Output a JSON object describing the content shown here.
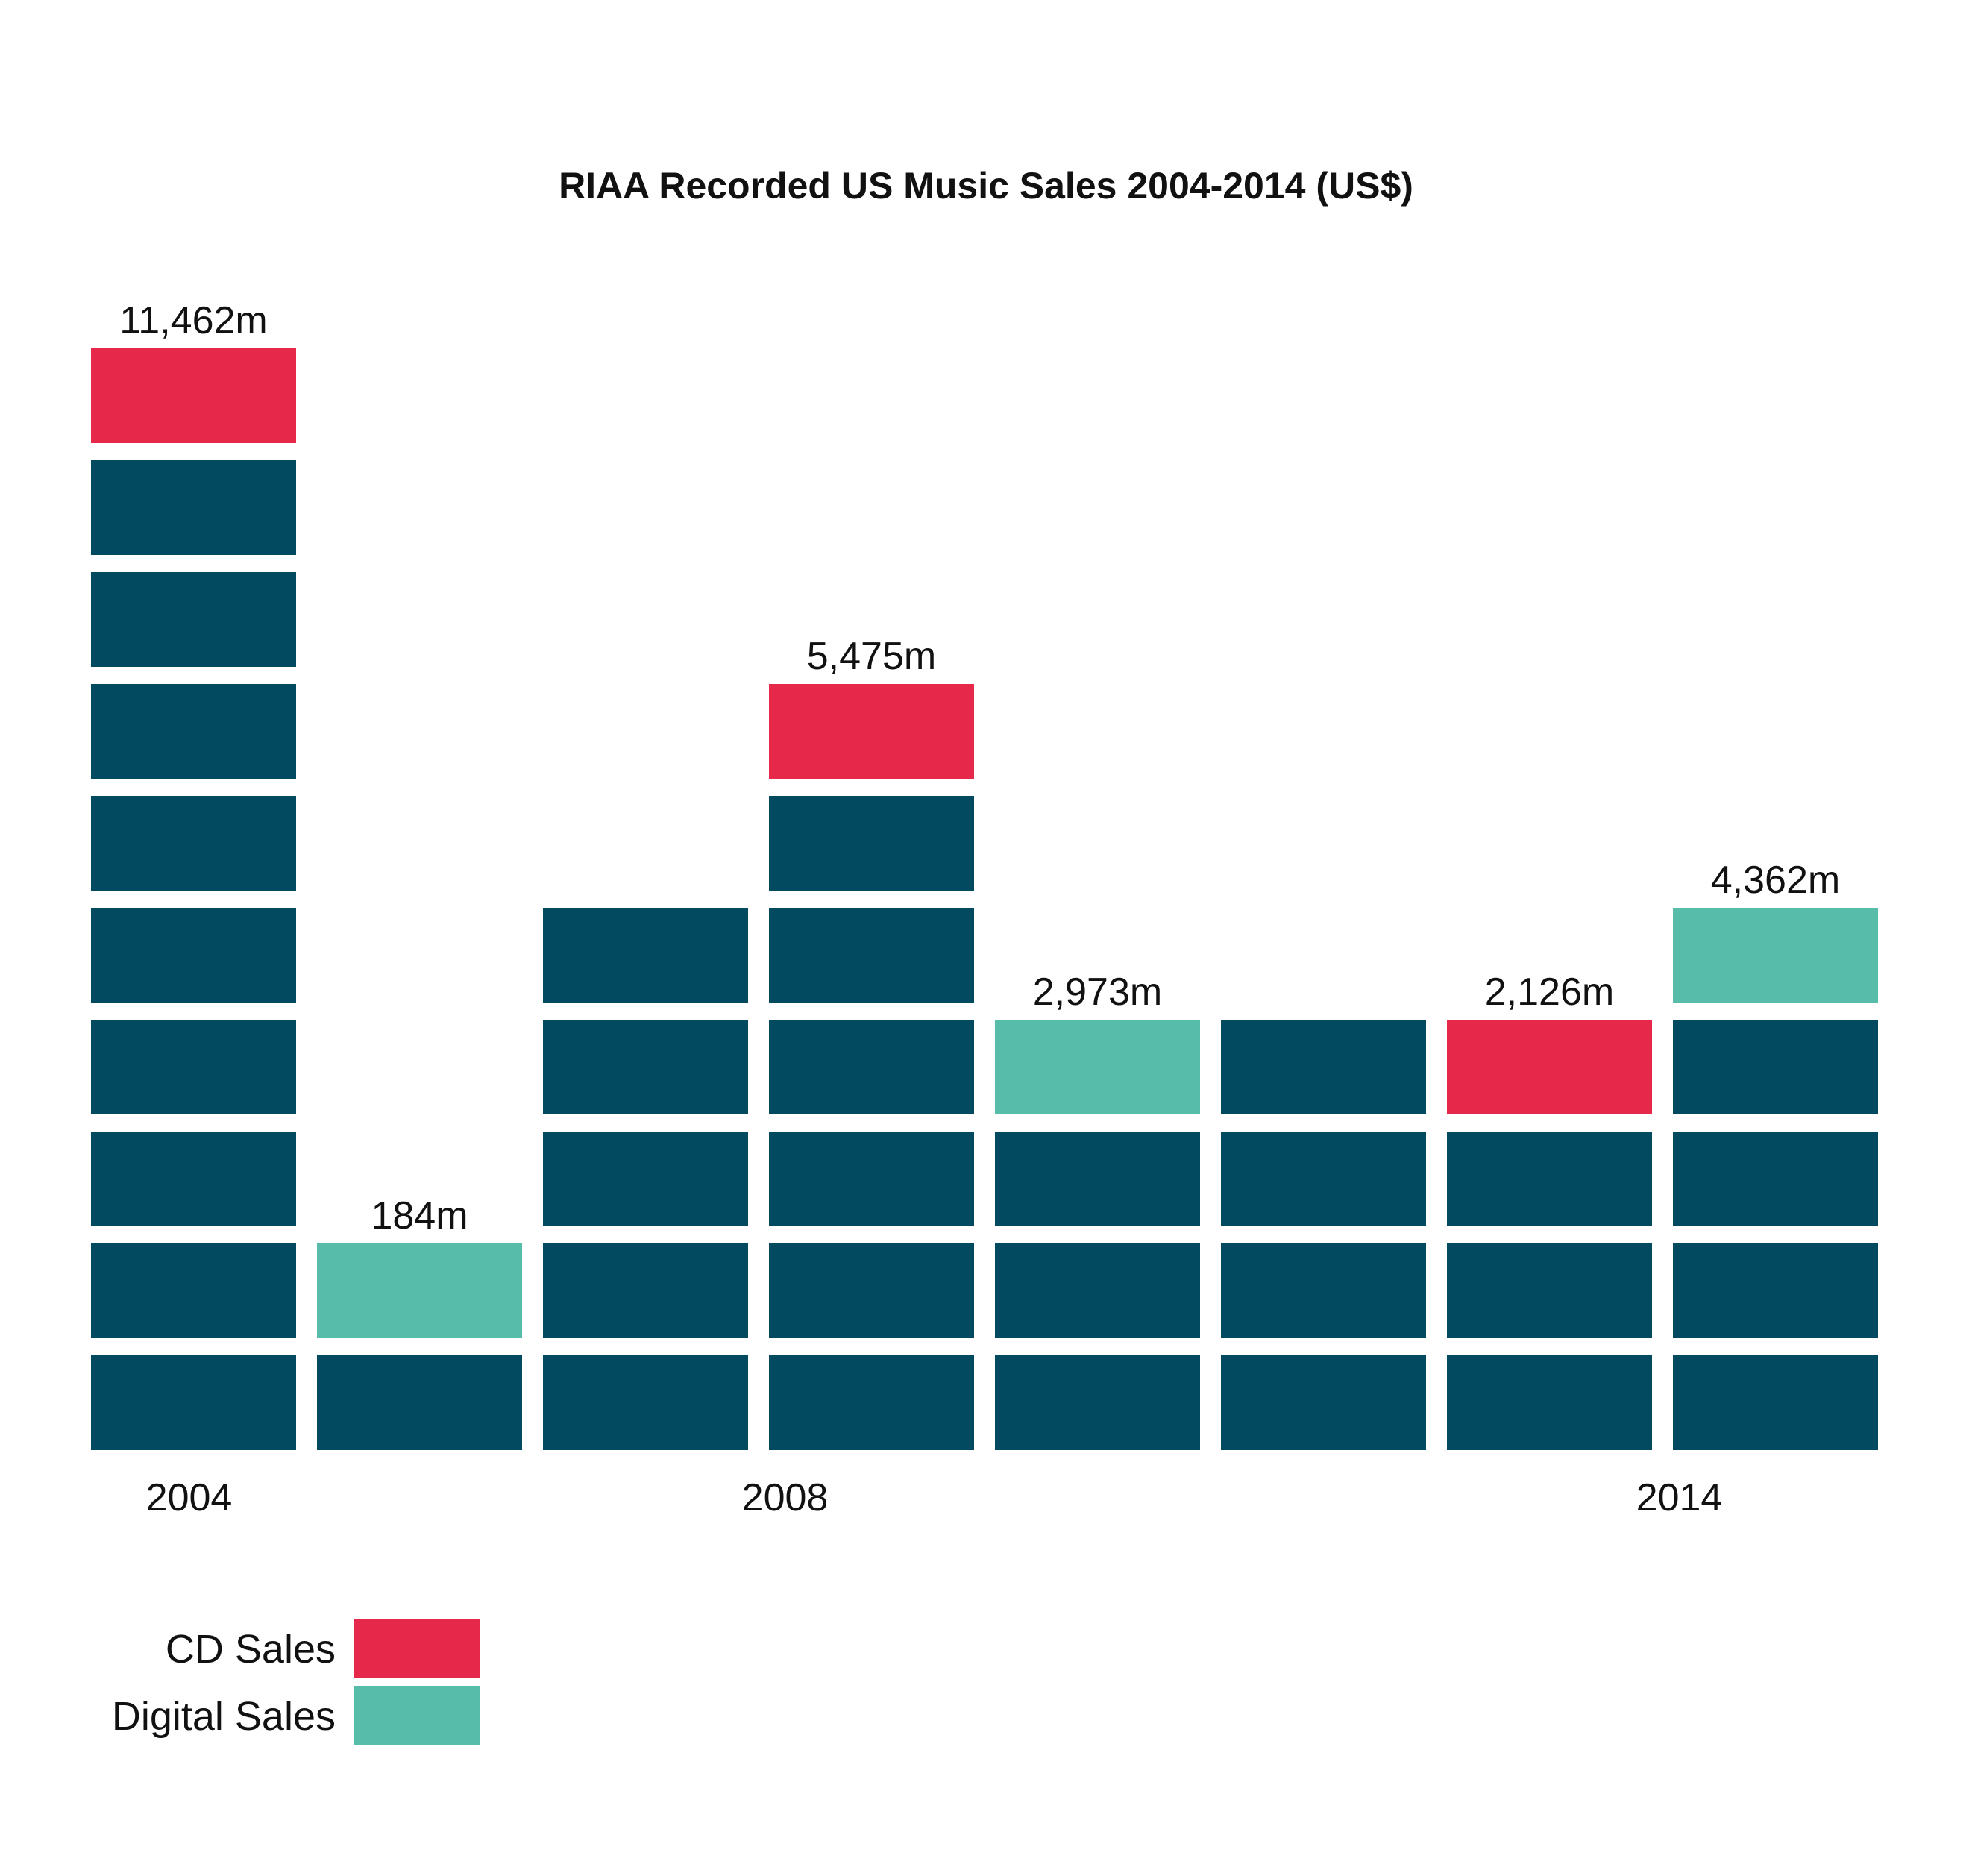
{
  "chart_data": {
    "type": "bar",
    "title": "RIAA Recorded US Music Sales 2004-2014 (US$)",
    "categories": [
      "2004",
      "",
      "",
      "2008",
      "",
      "",
      "",
      "2014"
    ],
    "values": [
      11462,
      184,
      4200,
      5475,
      2973,
      3100,
      2126,
      4362
    ],
    "block_counts": [
      10,
      2,
      5,
      7,
      4,
      4,
      4,
      5
    ],
    "highlight": [
      "cd",
      "digital",
      null,
      "cd",
      "digital",
      null,
      "cd",
      "digital"
    ],
    "data_labels": [
      "11,462m",
      "184m",
      "",
      "5,475m",
      "2,973m",
      "",
      "2,126m",
      "4,362m"
    ],
    "tick_labels": [
      "2004",
      "2008",
      "2014"
    ],
    "xlabel": "",
    "ylabel": "",
    "grid": false,
    "legend_position": "bottom-left",
    "series": [
      {
        "name": "CD Sales",
        "color": "#e6284a"
      },
      {
        "name": "Digital Sales",
        "color": "#58bcaa"
      }
    ]
  },
  "colors": {
    "base": "#024a60",
    "cd": "#e6284a",
    "digital": "#58bcaa",
    "text": "#111111"
  },
  "legend": {
    "cd_label": "CD Sales",
    "digital_label": "Digital Sales"
  }
}
